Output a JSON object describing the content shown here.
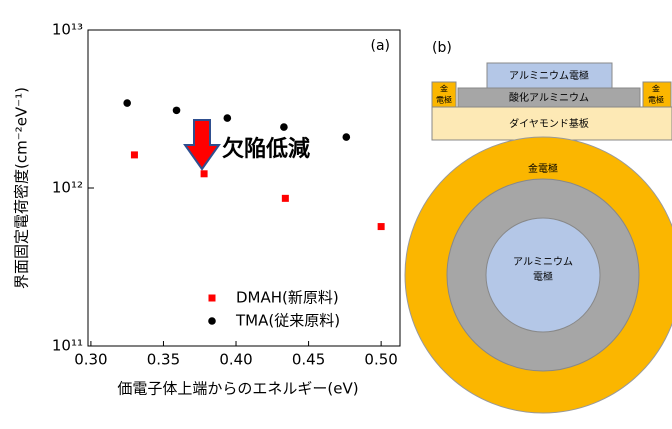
{
  "chart_data": {
    "type": "scatter",
    "panel_label": "(a)",
    "annotation": "欠陥低減",
    "x_label": "価電子体上端からのエネルギー(eV)",
    "y_label": "界面固定電荷密度(cm⁻²eV⁻¹)",
    "xlim": [
      0.298,
      0.513
    ],
    "xticks": [
      {
        "value": 0.3,
        "label": "0.30"
      },
      0.35,
      {
        "value": 0.4,
        "label": "0.40"
      },
      0.45,
      {
        "value": 0.5,
        "label": "0.50"
      }
    ],
    "ylim": [
      100000000000,
      10000000000000
    ],
    "log_y": true,
    "yticks": [
      {
        "value": 100000000000,
        "label": "10¹¹"
      },
      {
        "value": 1000000000000,
        "label": "10¹²"
      },
      {
        "value": 10000000000000,
        "label": "10¹³"
      }
    ],
    "legend": "lower right",
    "series": [
      {
        "name": "DMAH(新原料)",
        "color": "#ff0000",
        "marker": "square",
        "x": [
          0.33,
          0.378,
          0.434,
          0.5
        ],
        "values": [
          1620000000000,
          1230000000000,
          860000000000,
          570000000000
        ]
      },
      {
        "name": "TMA(従来原料)",
        "color": "#000000",
        "marker": "circle",
        "x": [
          0.325,
          0.359,
          0.394,
          0.433,
          0.476
        ],
        "values": [
          3450000000000,
          3100000000000,
          2770000000000,
          2430000000000,
          2100000000000
        ]
      }
    ]
  },
  "diagram": {
    "panel_label": "(b)",
    "top_electrode": "アルミニウム電極",
    "gold_left": [
      "金",
      "電極"
    ],
    "gold_right": [
      "金",
      "電極"
    ],
    "oxide": "酸化アルミニウム",
    "substrate": "ダイヤモンド基板",
    "outer_ring": "金電極",
    "inner_disk": [
      "アルミニウム",
      "電極"
    ]
  }
}
